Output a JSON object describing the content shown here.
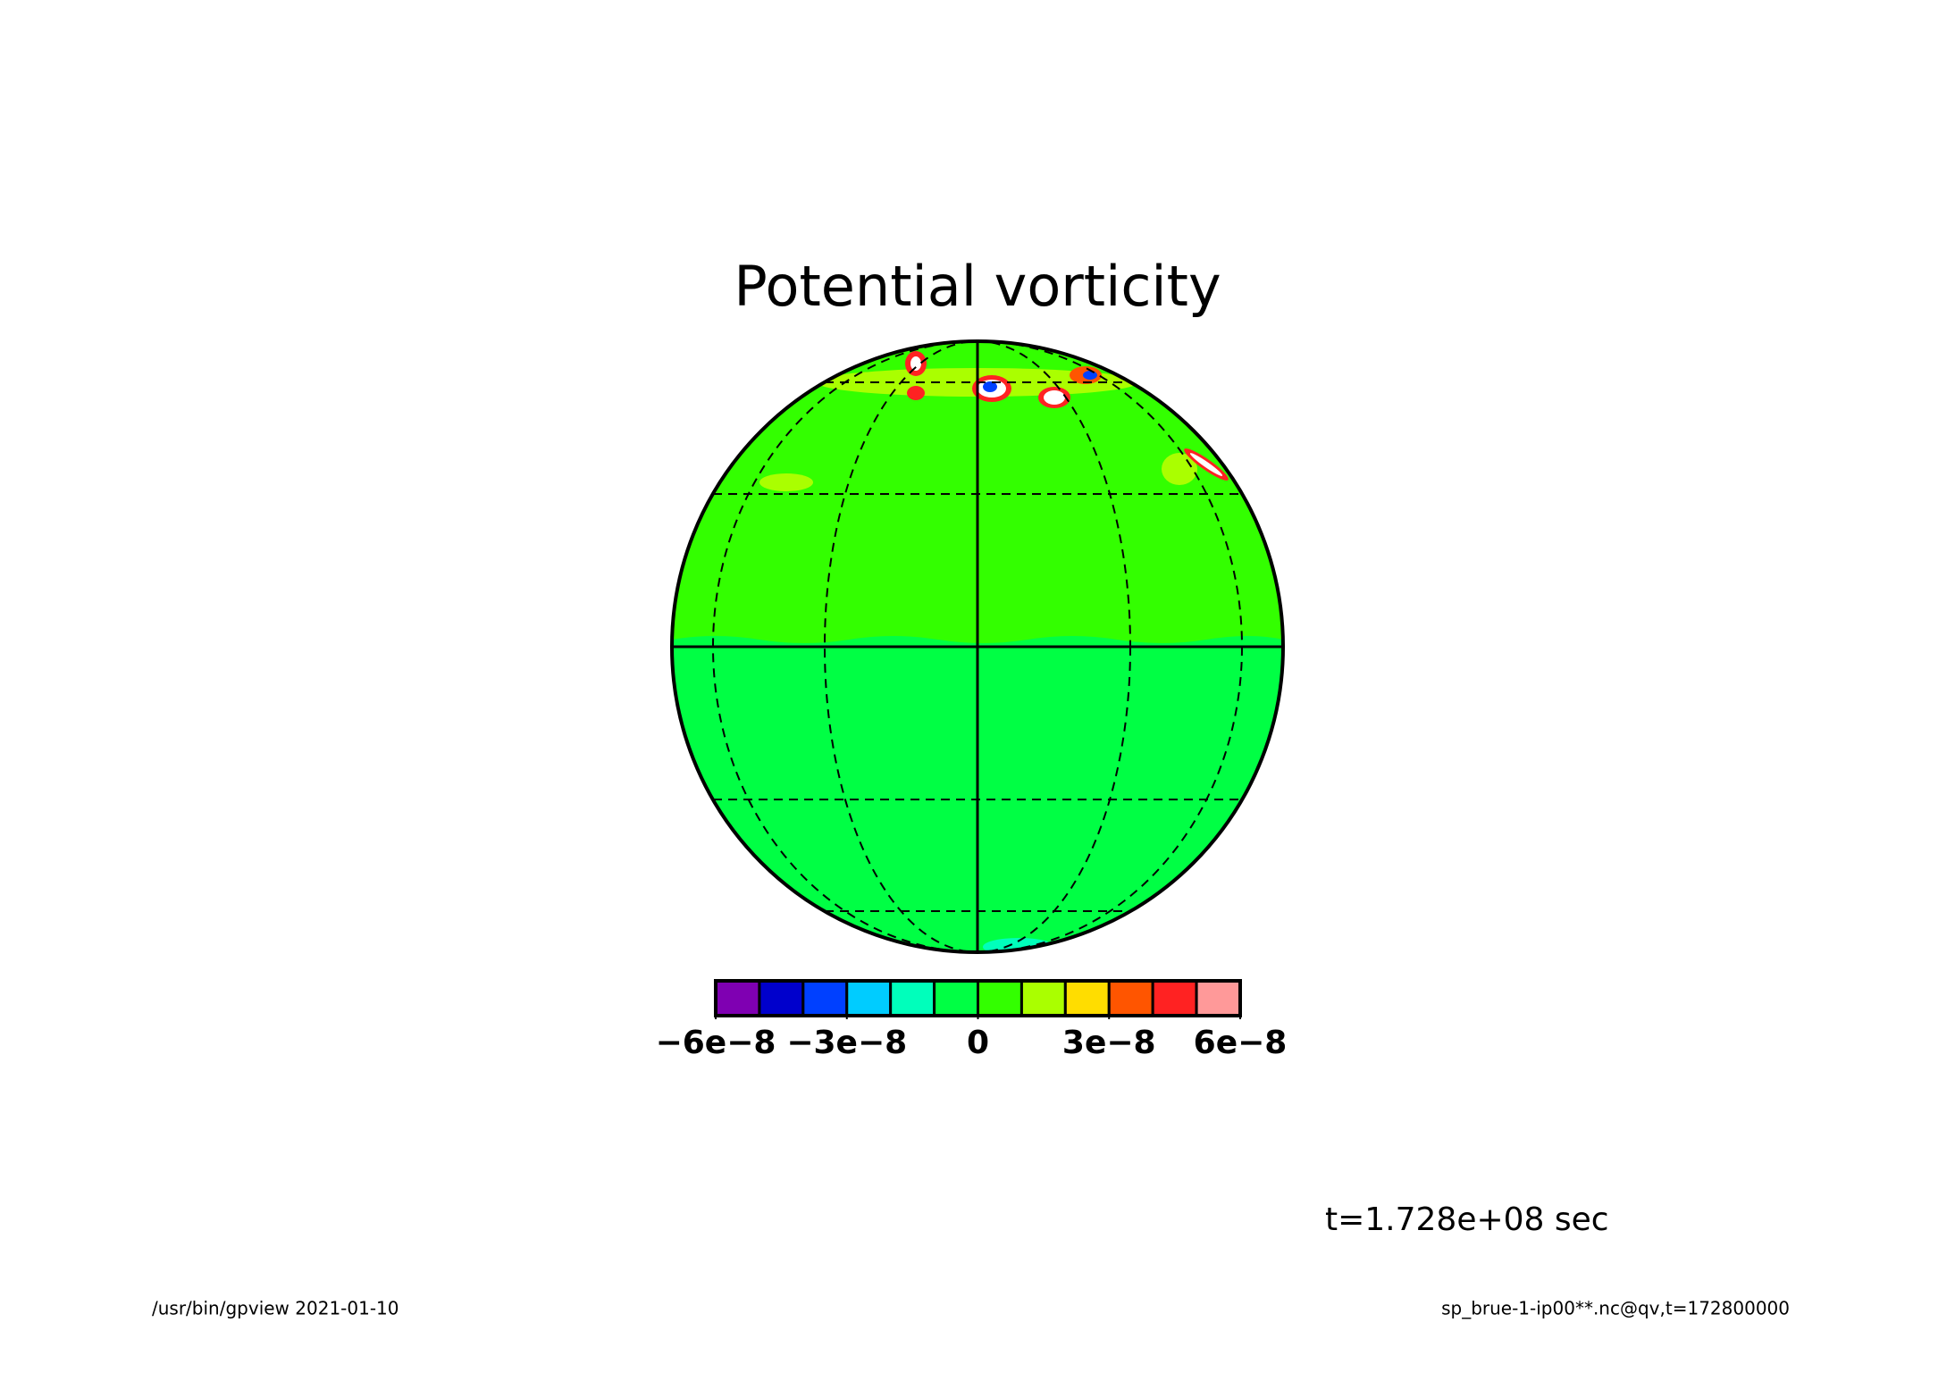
{
  "chart_data": {
    "type": "contour-map",
    "title": "Potential vorticity",
    "annotation": "t=1.728e+08 sec",
    "footer_left": "/usr/bin/gpview  2021-01-10",
    "footer_right": "sp_brue-1-ip00**.nc@qv,t=172800000",
    "colorbar": {
      "colors": [
        "#7f00b2",
        "#0000cc",
        "#0040ff",
        "#00ccff",
        "#00ffbb",
        "#00ff44",
        "#33ff00",
        "#aaff00",
        "#ffdd00",
        "#ff5500",
        "#ff2222",
        "#ff9999"
      ],
      "lim": [
        {
          "value": -6e-08,
          "label": "−6e−8"
        },
        {
          "value": 6e-08,
          "label": "6e−8"
        }
      ],
      "ticks": [
        {
          "value": -6e-08,
          "label": "−6e−8"
        },
        {
          "value": -3e-08,
          "label": "−3e−8"
        },
        0,
        {
          "value": 3e-08,
          "label": "3e−8"
        },
        {
          "value": 6e-08,
          "label": "6e−8"
        }
      ]
    }
  }
}
